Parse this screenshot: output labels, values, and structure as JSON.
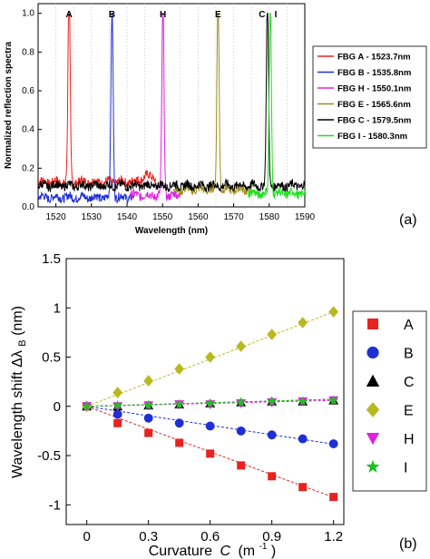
{
  "chart_data": [
    {
      "type": "line",
      "panel_label": "(a)",
      "xlabel": "Wavelength (nm)",
      "ylabel": "Normalized reflection spectra",
      "xlim": [
        1515,
        1590
      ],
      "ylim": [
        0,
        1.05
      ],
      "x_ticks": [
        "1520",
        "1530",
        "1540",
        "1550",
        "1560",
        "1570",
        "1580",
        "1590"
      ],
      "x_tick_values": [
        1520,
        1530,
        1540,
        1550,
        1560,
        1570,
        1580,
        1590
      ],
      "y_ticks": [
        "0.0",
        "0.2",
        "0.4",
        "0.6",
        "0.8",
        "1.0"
      ],
      "y_tick_values": [
        0,
        0.2,
        0.4,
        0.6,
        0.8,
        1.0
      ],
      "grid": "vertical-dotted",
      "legend_position": "right",
      "series": [
        {
          "key": "A",
          "name": "FBG A - 1523.7nm",
          "color": "#e8231f",
          "peak": 1523.7,
          "band": [
            1515,
            1548
          ],
          "base": 0.13
        },
        {
          "key": "B",
          "name": "FBG B - 1535.8nm",
          "color": "#1f2fd6",
          "peak": 1535.8,
          "band": [
            1515,
            1542
          ],
          "base": 0.05
        },
        {
          "key": "H",
          "name": "FBG H - 1550.1nm",
          "color": "#e020e0",
          "peak": 1550.1,
          "band": [
            1541,
            1555
          ],
          "base": 0.06
        },
        {
          "key": "E",
          "name": "FBG E - 1565.6nm",
          "color": "#a09020",
          "peak": 1565.6,
          "band": [
            1553,
            1575
          ],
          "base": 0.09
        },
        {
          "key": "C",
          "name": "FBG C - 1579.5nm",
          "color": "#000000",
          "peak": 1579.5,
          "band": [
            1515,
            1590
          ],
          "base": 0.11
        },
        {
          "key": "I",
          "name": "FBG  I - 1580.3nm",
          "color": "#20e020",
          "peak": 1580.3,
          "band": [
            1574,
            1590
          ],
          "base": 0.07
        }
      ]
    },
    {
      "type": "scatter",
      "panel_label": "(b)",
      "xlabel": "Curvature",
      "xlabel_symbol": "C",
      "xlabel_unit": "(m",
      "xlabel_unit_exp": "-1",
      "xlabel_unit_close": ")",
      "ylabel": "Wavelength shift Δλ",
      "ylabel_sub": "B",
      "ylabel_unit": " (nm)",
      "xlim": [
        -0.1,
        1.25
      ],
      "ylim": [
        -1.2,
        1.5
      ],
      "x_ticks": [
        "0",
        "0.3",
        "0.6",
        "0.9",
        "1.2"
      ],
      "x_tick_values": [
        0,
        0.3,
        0.6,
        0.9,
        1.2
      ],
      "y_ticks": [
        "1.5",
        "1",
        "0.5",
        "0",
        "-0.5",
        "-1"
      ],
      "y_tick_values": [
        1.5,
        1,
        0.5,
        0,
        -0.5,
        -1
      ],
      "x": [
        0,
        0.15,
        0.3,
        0.45,
        0.6,
        0.75,
        0.9,
        1.05,
        1.2
      ],
      "legend_position": "right",
      "series": [
        {
          "name": "A",
          "color": "#e8231f",
          "marker": "square",
          "slope": -0.77,
          "values": [
            0,
            -0.17,
            -0.27,
            -0.37,
            -0.48,
            -0.6,
            -0.71,
            -0.82,
            -0.92
          ]
        },
        {
          "name": "B",
          "color": "#1f2fd6",
          "marker": "circle",
          "slope": -0.32,
          "values": [
            0,
            -0.08,
            -0.12,
            -0.17,
            -0.2,
            -0.25,
            -0.29,
            -0.33,
            -0.38
          ]
        },
        {
          "name": "C",
          "color": "#000000",
          "marker": "triangle-up",
          "slope": 0.06,
          "values": [
            0,
            0.0,
            0.01,
            0.02,
            0.03,
            0.04,
            0.05,
            0.05,
            0.06
          ]
        },
        {
          "name": "E",
          "color": "#b8b820",
          "marker": "diamond",
          "slope": 0.8,
          "values": [
            0,
            0.14,
            0.26,
            0.38,
            0.5,
            0.61,
            0.73,
            0.85,
            0.96
          ]
        },
        {
          "name": "H",
          "color": "#e020e0",
          "marker": "triangle-down",
          "slope": 0.05,
          "values": [
            0,
            0.0,
            0.01,
            0.02,
            0.02,
            0.03,
            0.04,
            0.05,
            0.06
          ]
        },
        {
          "name": "I",
          "color": "#20c020",
          "marker": "star",
          "slope": 0.06,
          "values": [
            0,
            0.01,
            0.01,
            0.02,
            0.03,
            0.04,
            0.05,
            0.05,
            0.06
          ]
        }
      ]
    }
  ]
}
